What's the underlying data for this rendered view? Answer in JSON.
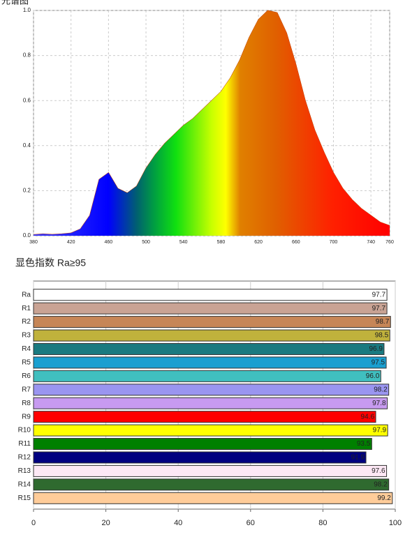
{
  "chart_data": [
    {
      "type": "area",
      "title": "光谱图",
      "x": [
        380,
        390,
        400,
        410,
        420,
        430,
        440,
        450,
        460,
        470,
        480,
        490,
        500,
        510,
        520,
        530,
        540,
        550,
        560,
        570,
        580,
        590,
        600,
        610,
        620,
        630,
        640,
        650,
        660,
        670,
        680,
        690,
        700,
        710,
        720,
        730,
        740,
        750,
        760
      ],
      "values": [
        0.005,
        0.008,
        0.006,
        0.008,
        0.012,
        0.03,
        0.09,
        0.25,
        0.28,
        0.21,
        0.19,
        0.22,
        0.3,
        0.36,
        0.41,
        0.45,
        0.49,
        0.52,
        0.56,
        0.6,
        0.64,
        0.7,
        0.78,
        0.88,
        0.96,
        1.0,
        0.99,
        0.9,
        0.76,
        0.6,
        0.47,
        0.37,
        0.28,
        0.21,
        0.16,
        0.12,
        0.09,
        0.06,
        0.045
      ],
      "xlim": [
        380,
        760
      ],
      "xticks": [
        380,
        420,
        460,
        500,
        540,
        580,
        620,
        660,
        700,
        740,
        760
      ],
      "ylim": [
        0,
        1
      ],
      "yticks": [
        {
          "value": 0,
          "label": "0.0"
        },
        {
          "value": 0.2,
          "label": "0.2"
        },
        {
          "value": 0.4,
          "label": "0.4"
        },
        {
          "value": 0.6,
          "label": "0.6"
        },
        {
          "value": 0.8,
          "label": "0.8"
        },
        {
          "value": 1,
          "label": "1.0"
        }
      ],
      "grid": true
    },
    {
      "type": "hbar",
      "title": "显色指数 Ra≥95",
      "categories": [
        "Ra",
        "R1",
        "R2",
        "R3",
        "R4",
        "R5",
        "R6",
        "R7",
        "R8",
        "R9",
        "R10",
        "R11",
        "R12",
        "R13",
        "R14",
        "R15"
      ],
      "values": [
        97.7,
        97.7,
        98.7,
        98.5,
        96.9,
        97.5,
        96.0,
        98.2,
        97.8,
        94.6,
        97.9,
        93.5,
        91.9,
        97.6,
        98.2,
        99.2
      ],
      "value_labels": [
        "97.7",
        "97.7",
        "98.7",
        "98.5",
        "96.9",
        "97.5",
        "96.0",
        "98.2",
        "97.8",
        "94.6",
        "97.9",
        "93.5",
        "91.9",
        "97.6",
        "98.2",
        "99.2"
      ],
      "colors": [
        "#ffffff",
        "#c9a394",
        "#c68657",
        "#c0b23c",
        "#1a7a80",
        "#1a9fd0",
        "#40bfbf",
        "#9a95f0",
        "#c79af0",
        "#ff0000",
        "#ffff00",
        "#008000",
        "#00007f",
        "#fde8f5",
        "#2f6a2f",
        "#ffcc99"
      ],
      "xlim": [
        0,
        100
      ],
      "xticks": [
        0,
        20,
        40,
        60,
        80,
        100
      ],
      "grid": true
    }
  ]
}
